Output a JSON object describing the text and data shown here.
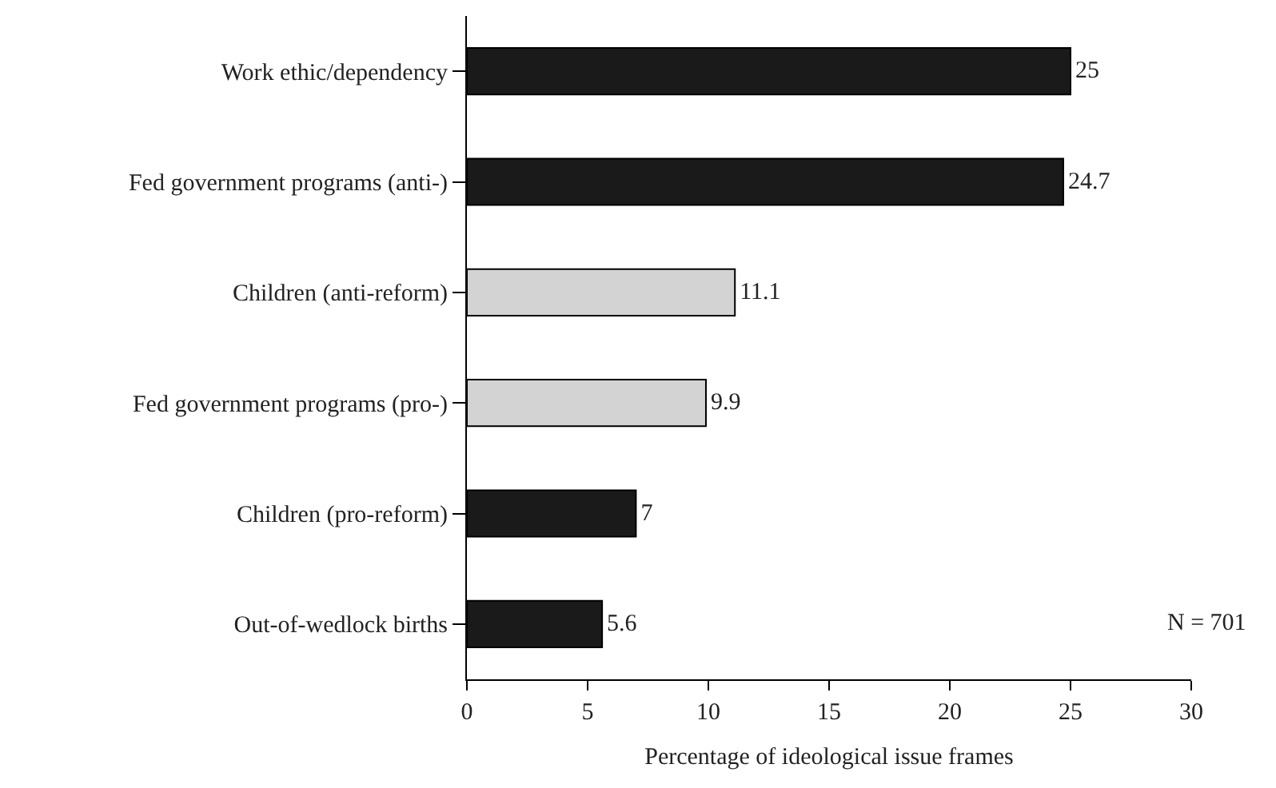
{
  "chart_data": {
    "type": "bar",
    "orientation": "horizontal",
    "xlabel": "Percentage of ideological issue frames",
    "categories": [
      "Work ethic/dependency",
      "Fed government programs (anti-)",
      "Children (anti-reform)",
      "Fed government programs (pro-)",
      "Children (pro-reform)",
      "Out-of-wedlock births"
    ],
    "values": [
      25,
      24.7,
      11.1,
      9.9,
      7,
      5.6
    ],
    "colors": [
      "#1a1a1a",
      "#1a1a1a",
      "#d3d3d3",
      "#d3d3d3",
      "#1a1a1a",
      "#1a1a1a"
    ],
    "xlim": [
      0,
      30
    ],
    "xticks": [
      0,
      5,
      10,
      15,
      20,
      25,
      30
    ],
    "data_labels": true,
    "legend": false,
    "annotations": [
      "N = 701"
    ]
  }
}
